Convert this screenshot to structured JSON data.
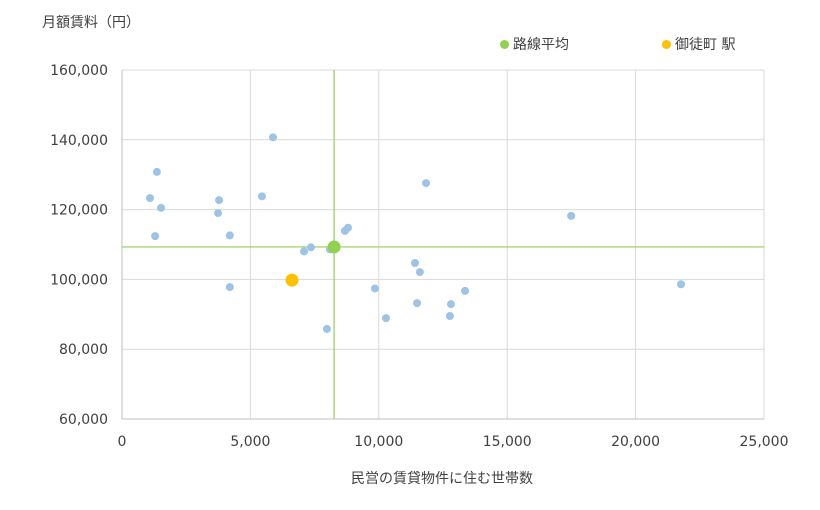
{
  "chart_data": {
    "type": "scatter",
    "title": "",
    "xlabel": "民営の賃貸物件に住む世帯数",
    "ylabel": "月額賃料（円）",
    "xlim": [
      0,
      25000
    ],
    "ylim": [
      60000,
      160000
    ],
    "x_ticks": [
      "0",
      "5,000",
      "10,000",
      "15,000",
      "20,000",
      "25,000"
    ],
    "y_ticks": [
      "60,000",
      "80,000",
      "100,000",
      "120,000",
      "140,000",
      "160,000"
    ],
    "grid": true,
    "legend_position": "top-right",
    "legend": [
      {
        "name": "路線平均",
        "color": "#92D050"
      },
      {
        "name": "御徒町 駅",
        "color": "#FFC000"
      }
    ],
    "series": [
      {
        "name": "stations",
        "color": "#9DC3E6",
        "points": [
          {
            "x": 1090,
            "y": 123300
          },
          {
            "x": 1360,
            "y": 130800
          },
          {
            "x": 1520,
            "y": 120500
          },
          {
            "x": 1290,
            "y": 112400
          },
          {
            "x": 3780,
            "y": 122700
          },
          {
            "x": 3740,
            "y": 119000
          },
          {
            "x": 4200,
            "y": 112600
          },
          {
            "x": 4200,
            "y": 97800
          },
          {
            "x": 5450,
            "y": 123800
          },
          {
            "x": 5880,
            "y": 140700
          },
          {
            "x": 7090,
            "y": 108000
          },
          {
            "x": 7360,
            "y": 109200
          },
          {
            "x": 8100,
            "y": 108600
          },
          {
            "x": 7980,
            "y": 85800
          },
          {
            "x": 8680,
            "y": 113900
          },
          {
            "x": 8800,
            "y": 114800
          },
          {
            "x": 9850,
            "y": 97400
          },
          {
            "x": 10280,
            "y": 88900
          },
          {
            "x": 11410,
            "y": 104700
          },
          {
            "x": 11600,
            "y": 102100
          },
          {
            "x": 11840,
            "y": 127600
          },
          {
            "x": 11490,
            "y": 93200
          },
          {
            "x": 12810,
            "y": 92900
          },
          {
            "x": 12770,
            "y": 89500
          },
          {
            "x": 13360,
            "y": 96700
          },
          {
            "x": 17490,
            "y": 118200
          },
          {
            "x": 21770,
            "y": 98600
          }
        ]
      },
      {
        "name": "路線平均",
        "color": "#92D050",
        "points": [
          {
            "x": 8260,
            "y": 109300
          }
        ]
      },
      {
        "name": "御徒町 駅",
        "color": "#FFC000",
        "points": [
          {
            "x": 6620,
            "y": 99800
          }
        ]
      }
    ],
    "reference_lines": {
      "color": "#92D050",
      "x": 8260,
      "y": 109300
    }
  },
  "labels": {
    "ylabel": "月額賃料（円）",
    "xlabel": "民営の賃貸物件に住む世帯数",
    "legend_route_avg": "路線平均",
    "legend_station": "御徒町 駅"
  }
}
